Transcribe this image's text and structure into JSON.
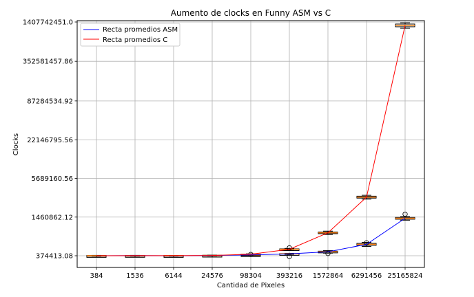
{
  "chart_data": {
    "type": "line",
    "title": "Aumento de clocks en Funny ASM vs C",
    "xlabel": "Cantidad de Pixeles",
    "ylabel": "Clocks",
    "y_scale": "log",
    "categories": [
      "384",
      "1536",
      "6144",
      "24576",
      "98304",
      "393216",
      "1572864",
      "6291456",
      "25165824"
    ],
    "yticks": [
      374413.08,
      1460862.12,
      5689160.56,
      22146795.56,
      87284534.92,
      352581457.86,
      1407742451.0
    ],
    "ytick_labels": [
      "374413.08",
      "1460862.12",
      "5689160.56",
      "22146795.56",
      "87284534.92",
      "352581457.86",
      "1407742451.0"
    ],
    "ylim": [
      265000,
      1620000000
    ],
    "grid": true,
    "legend_position": "top-left",
    "series": [
      {
        "name": "Recta promedios ASM",
        "color": "#0000ff",
        "values": [
          374413,
          376000,
          374500,
          378000,
          385000,
          400000,
          430000,
          560000,
          1400000
        ],
        "box_median": [
          374413,
          376000,
          374500,
          378000,
          385000,
          400000,
          430000,
          560000,
          1400000
        ],
        "box_spread": [
          5000,
          4000,
          4000,
          4000,
          5000,
          8000,
          20000,
          40000,
          90000
        ],
        "outliers": [
          [],
          [],
          [],
          [],
          [
            392000
          ],
          [
            365000
          ],
          [
            405000
          ],
          [
            590000
          ],
          [
            1620000
          ]
        ]
      },
      {
        "name": "Recta promedios C",
        "color": "#ff0000",
        "values": [
          374413,
          375000,
          375000,
          378000,
          395000,
          470000,
          840000,
          2950000,
          1250000000
        ],
        "box_median": [
          374413,
          375000,
          375000,
          378000,
          395000,
          470000,
          840000,
          2950000,
          1250000000
        ],
        "box_spread": [
          5000,
          4000,
          4000,
          5000,
          6000,
          15000,
          50000,
          200000,
          120000000
        ],
        "outliers": [
          [],
          [],
          [],
          [],
          [],
          [
            495000
          ],
          [],
          [],
          []
        ]
      }
    ]
  }
}
